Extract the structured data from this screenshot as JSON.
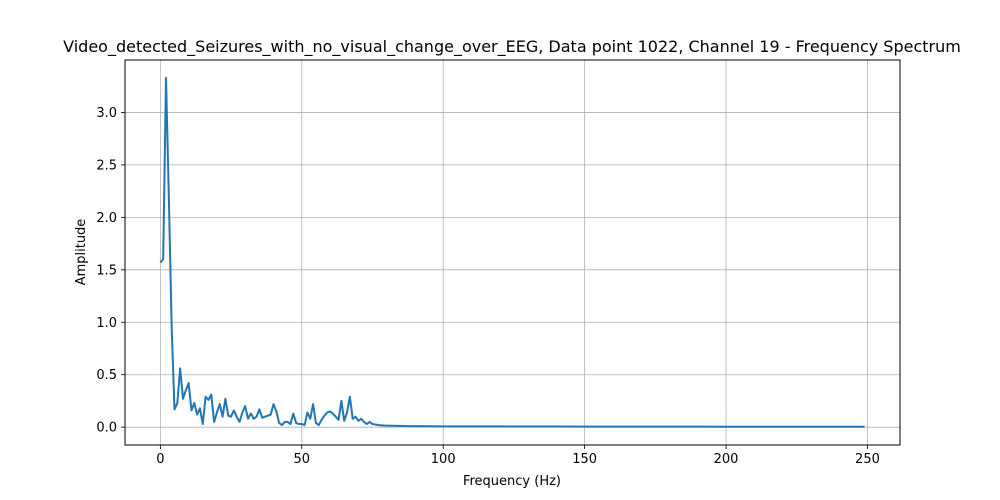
{
  "chart_data": {
    "type": "line",
    "title": "Video_detected_Seizures_with_no_visual_change_over_EEG, Data point 1022, Channel 19 - Frequency Spectrum",
    "xlabel": "Frequency (Hz)",
    "ylabel": "Amplitude",
    "xlim": [
      -12.5,
      261.5
    ],
    "ylim": [
      -0.17,
      3.5
    ],
    "x_ticks": [
      0,
      50,
      100,
      150,
      200,
      250
    ],
    "x_tick_labels": [
      "0",
      "50",
      "100",
      "150",
      "200",
      "250"
    ],
    "y_ticks": [
      0.0,
      0.5,
      1.0,
      1.5,
      2.0,
      2.5,
      3.0
    ],
    "y_tick_labels": [
      "0.0",
      "0.5",
      "1.0",
      "1.5",
      "2.0",
      "2.5",
      "3.0"
    ],
    "grid": true,
    "line_color": "#1f77b4",
    "series": [
      {
        "x": [
          0,
          1,
          2,
          3,
          4,
          5,
          6,
          7,
          8,
          9,
          10,
          11,
          12,
          13,
          14,
          15,
          16,
          17,
          18,
          19,
          20,
          21,
          22,
          23,
          24,
          25,
          26,
          27,
          28,
          29,
          30,
          31,
          32,
          33,
          34,
          35,
          36,
          37,
          38,
          39,
          40,
          41,
          42,
          43,
          44,
          45,
          46,
          47,
          48,
          49,
          50,
          51,
          52,
          53,
          54,
          55,
          56,
          57,
          58,
          59,
          60,
          61,
          62,
          63,
          64,
          65,
          66,
          67,
          68,
          69,
          70,
          71,
          72,
          73,
          74,
          75,
          76,
          77,
          78,
          79,
          80,
          82,
          84,
          86,
          88,
          90,
          95,
          100,
          110,
          120,
          130,
          140,
          150,
          160,
          170,
          180,
          190,
          200,
          210,
          220,
          230,
          240,
          249
        ],
        "y": [
          1.57,
          1.6,
          3.33,
          2.2,
          0.95,
          0.17,
          0.23,
          0.56,
          0.27,
          0.35,
          0.42,
          0.16,
          0.23,
          0.12,
          0.18,
          0.03,
          0.29,
          0.26,
          0.31,
          0.05,
          0.14,
          0.22,
          0.1,
          0.27,
          0.11,
          0.1,
          0.16,
          0.1,
          0.05,
          0.14,
          0.2,
          0.08,
          0.13,
          0.08,
          0.1,
          0.17,
          0.09,
          0.1,
          0.11,
          0.12,
          0.22,
          0.15,
          0.04,
          0.02,
          0.05,
          0.05,
          0.03,
          0.13,
          0.04,
          0.03,
          0.03,
          0.02,
          0.14,
          0.08,
          0.22,
          0.04,
          0.02,
          0.07,
          0.11,
          0.14,
          0.15,
          0.13,
          0.1,
          0.07,
          0.25,
          0.06,
          0.14,
          0.29,
          0.08,
          0.1,
          0.06,
          0.08,
          0.05,
          0.03,
          0.05,
          0.03,
          0.025,
          0.02,
          0.018,
          0.016,
          0.015,
          0.013,
          0.012,
          0.011,
          0.01,
          0.01,
          0.009,
          0.008,
          0.007,
          0.007,
          0.006,
          0.006,
          0.005,
          0.005,
          0.005,
          0.005,
          0.005,
          0.004,
          0.004,
          0.004,
          0.004,
          0.004,
          0.004
        ]
      }
    ]
  }
}
